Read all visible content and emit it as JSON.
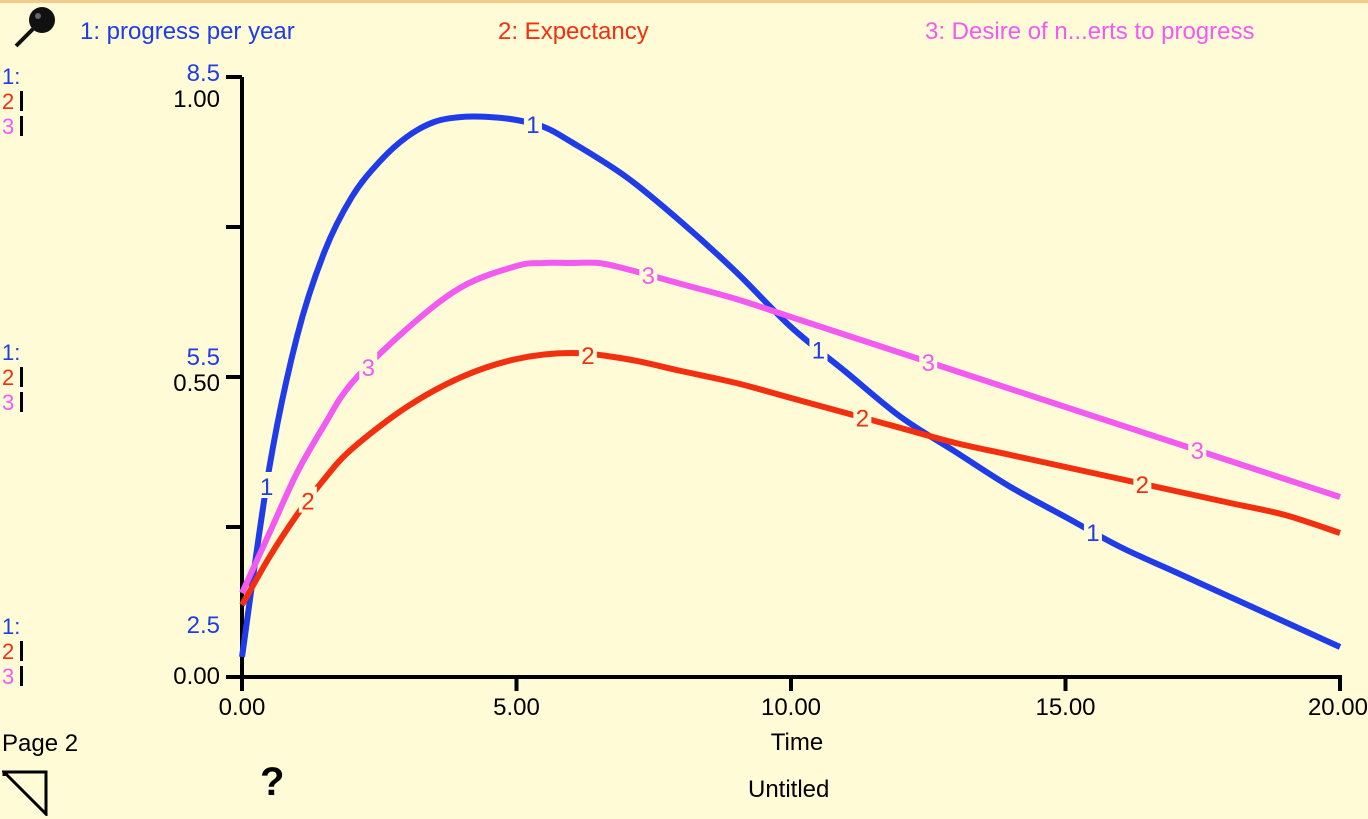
{
  "colors": {
    "s1": "#1f3ce8",
    "s2": "#f2300f",
    "s3": "#f25af0",
    "axis": "#000000",
    "bg": "#fefbd6"
  },
  "legend": {
    "s1": "1: progress per year",
    "s2": "2: Expectancy",
    "s3": "3: Desire of n...erts to progress"
  },
  "scales": {
    "top": {
      "l1": "1:",
      "l2": "2",
      "l3": "3",
      "v1": "8.5",
      "v23": "1.00"
    },
    "mid": {
      "l1": "1:",
      "l2": "2",
      "l3": "3",
      "v1": "5.5",
      "v23": "0.50"
    },
    "bottom": {
      "l1": "1:",
      "l2": "2",
      "l3": "3",
      "v1": "2.5",
      "v23": "0.00"
    }
  },
  "footer": {
    "page": "Page 2",
    "title": "Untitled",
    "help": "?"
  },
  "icons": [
    "pin-icon",
    "help-icon",
    "page-corner-icon"
  ],
  "chart_data": {
    "type": "line",
    "xlabel": "Time",
    "xlim": [
      0,
      20
    ],
    "xticks": [
      "0.00",
      "5.00",
      "10.00",
      "15.00",
      "20.00"
    ],
    "series": [
      {
        "name": "1: progress per year",
        "marker": "1",
        "ylim": [
          2.5,
          8.5
        ],
        "x": [
          0,
          0.5,
          1,
          1.5,
          2,
          2.5,
          3,
          3.5,
          4,
          4.5,
          5,
          5.5,
          6,
          7,
          8,
          9,
          10,
          11,
          12,
          13,
          14,
          15,
          16,
          17,
          18,
          19,
          20
        ],
        "y": [
          2.7,
          4.6,
          5.9,
          6.75,
          7.3,
          7.65,
          7.9,
          8.05,
          8.1,
          8.1,
          8.07,
          8.0,
          7.85,
          7.5,
          7.05,
          6.55,
          6.0,
          5.55,
          5.1,
          4.75,
          4.4,
          4.1,
          3.8,
          3.55,
          3.3,
          3.05,
          2.8
        ]
      },
      {
        "name": "2: Expectancy",
        "marker": "2",
        "ylim": [
          0,
          1
        ],
        "x": [
          0,
          0.5,
          1,
          1.5,
          2,
          3,
          4,
          5,
          6,
          7,
          8,
          9,
          10,
          11,
          12,
          13,
          14,
          15,
          16,
          17,
          18,
          19,
          20
        ],
        "y": [
          0.12,
          0.2,
          0.27,
          0.33,
          0.38,
          0.45,
          0.5,
          0.53,
          0.54,
          0.53,
          0.51,
          0.49,
          0.465,
          0.44,
          0.415,
          0.39,
          0.37,
          0.35,
          0.33,
          0.31,
          0.29,
          0.27,
          0.24
        ]
      },
      {
        "name": "3: Desire of n...erts to progress",
        "marker": "3",
        "ylim": [
          0,
          1
        ],
        "x": [
          0,
          0.5,
          1,
          1.5,
          2,
          3,
          4,
          5,
          5.5,
          6,
          6.5,
          7,
          8,
          9,
          10,
          11,
          12,
          13,
          14,
          15,
          16,
          17,
          18,
          19,
          20
        ],
        "y": [
          0.14,
          0.24,
          0.34,
          0.42,
          0.49,
          0.58,
          0.65,
          0.685,
          0.69,
          0.69,
          0.69,
          0.68,
          0.655,
          0.63,
          0.6,
          0.57,
          0.54,
          0.51,
          0.48,
          0.45,
          0.42,
          0.39,
          0.36,
          0.33,
          0.3
        ]
      }
    ]
  }
}
